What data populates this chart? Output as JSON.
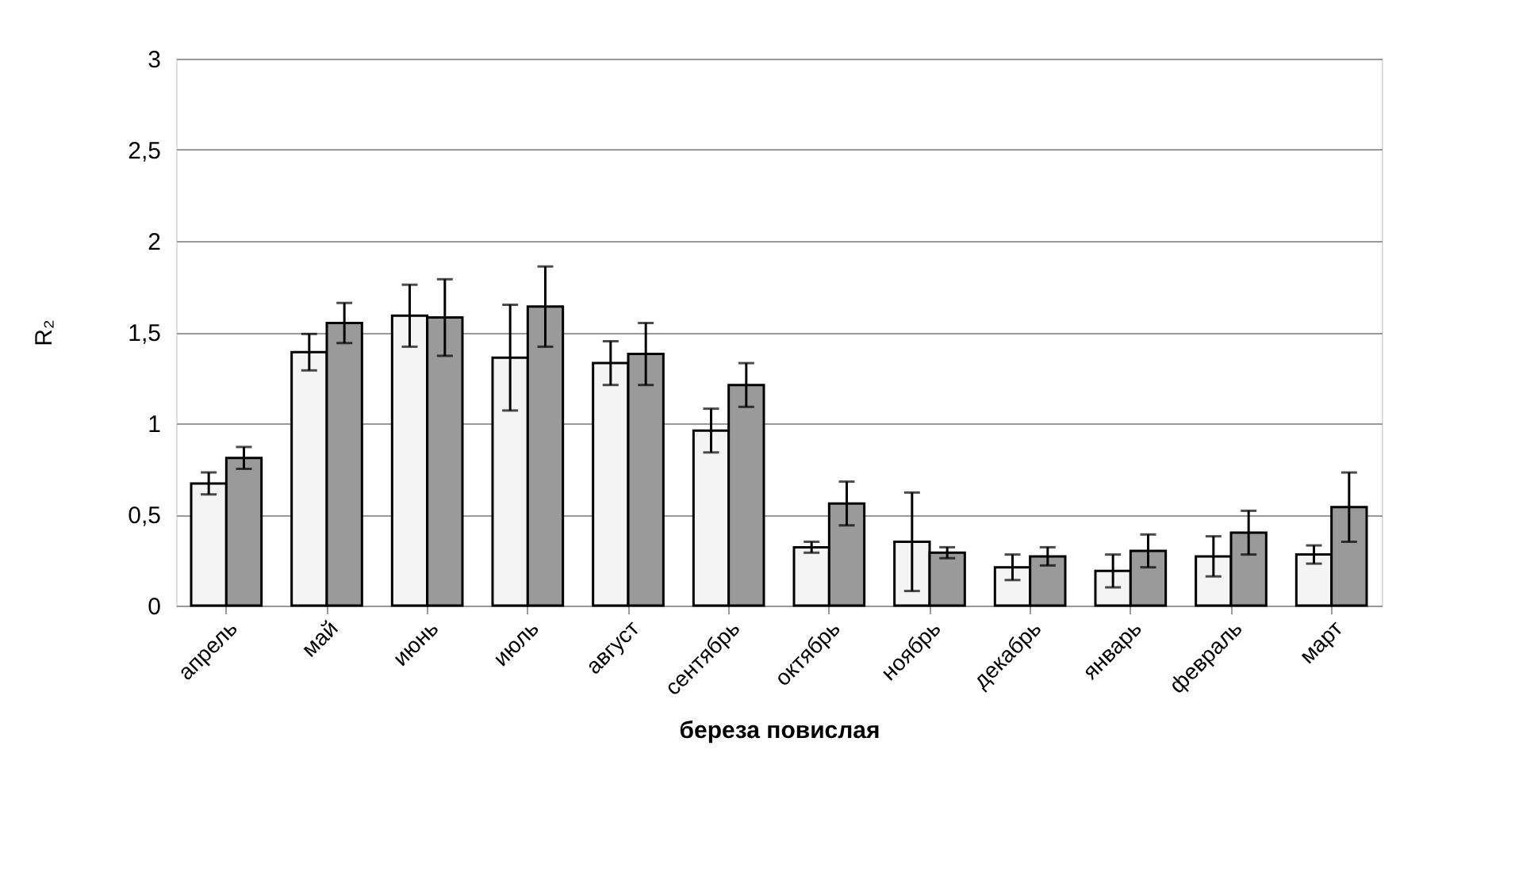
{
  "chart_data": {
    "type": "bar",
    "xlabel": "береза повислая",
    "ylabel": "R₂",
    "categories": [
      "апрель",
      "май",
      "июнь",
      "июль",
      "август",
      "сентябрь",
      "октябрь",
      "ноябрь",
      "декабрь",
      "январь",
      "февраль",
      "март"
    ],
    "series": [
      {
        "color": "#f4f4f4",
        "values": [
          0.67,
          1.39,
          1.59,
          1.36,
          1.33,
          0.96,
          0.32,
          0.35,
          0.21,
          0.19,
          0.27,
          0.28
        ],
        "errors": [
          0.06,
          0.1,
          0.17,
          0.29,
          0.12,
          0.12,
          0.03,
          0.27,
          0.07,
          0.09,
          0.11,
          0.05
        ]
      },
      {
        "color": "#9a9a9a",
        "values": [
          0.81,
          1.55,
          1.58,
          1.64,
          1.38,
          1.21,
          0.56,
          0.29,
          0.27,
          0.3,
          0.4,
          0.54
        ],
        "errors": [
          0.06,
          0.11,
          0.21,
          0.22,
          0.17,
          0.12,
          0.12,
          0.03,
          0.05,
          0.09,
          0.12,
          0.19
        ]
      }
    ],
    "ylim": [
      0,
      3
    ],
    "yticks": [
      0,
      {
        "value": 0.5,
        "label": "0,5"
      },
      1,
      {
        "value": 1.5,
        "label": "1,5"
      },
      2,
      {
        "value": 2.5,
        "label": "2,5"
      },
      3
    ],
    "grid": "y",
    "legend": false
  }
}
